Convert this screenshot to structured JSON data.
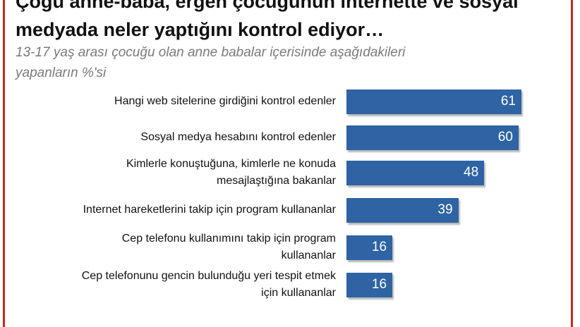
{
  "header": {
    "title_lines": [
      "Çoğu anne-baba, ergen çocuğunun internette ve sosyal",
      "medyada neler yaptığını kontrol ediyor…"
    ],
    "subtitle_lines": [
      "13-17 yaş arası çocuğu olan anne babalar içerisinde aşağıdakileri",
      "yapanların %'si"
    ]
  },
  "colors": {
    "bar": "#2e63a4",
    "frame": "#c62828",
    "subtitle": "#7a7a7a"
  },
  "chart_data": {
    "type": "bar",
    "orientation": "horizontal",
    "categories": [
      [
        "Hangi web sitelerine girdiğini kontrol edenler"
      ],
      [
        "Sosyal medya hesabını kontrol edenler"
      ],
      [
        "Kimlerle konuştuğuna, kimlerle ne konuda",
        "mesajlaştığına bakanlar"
      ],
      [
        "Internet hareketlerini takip için program kullananlar"
      ],
      [
        "Cep telefonu kullanımını takip için program",
        "kullananlar"
      ],
      [
        "Cep telefonunu gencin bulunduğu yeri tespit etmek",
        "için kullananlar"
      ]
    ],
    "values": [
      61,
      60,
      48,
      39,
      16,
      16
    ],
    "data_labels": [
      "61",
      "60",
      "48",
      "39",
      "16",
      "16"
    ],
    "xlim": [
      0,
      61
    ],
    "grid": false,
    "legend": "none"
  }
}
